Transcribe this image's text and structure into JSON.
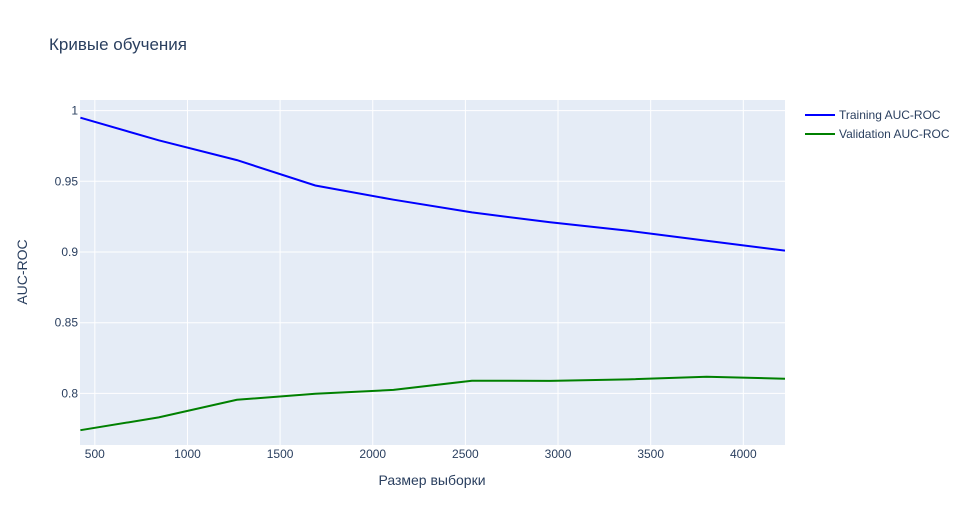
{
  "chart_data": {
    "type": "line",
    "title": "Кривые обучения",
    "xlabel": "Размер выборки",
    "ylabel": "AUC-ROC",
    "xlim": [
      420,
      4225
    ],
    "ylim": [
      0.7635,
      1.0075
    ],
    "x_ticks": [
      500,
      1000,
      1500,
      2000,
      2500,
      3000,
      3500,
      4000
    ],
    "x_tick_labels": [
      "500",
      "1000",
      "1500",
      "2000",
      "2500",
      "3000",
      "3500",
      "4000"
    ],
    "y_ticks": [
      0.8,
      0.85,
      0.9,
      0.95,
      1
    ],
    "y_tick_labels": [
      "0.8",
      "0.85",
      "0.9",
      "0.95",
      "1"
    ],
    "grid": true,
    "legend_position": "top-right, outside plot",
    "series": [
      {
        "name": "Training AUC-ROC",
        "color": "#0000ff",
        "x": [
          422,
          845,
          1267,
          1690,
          2112,
          2535,
          2957,
          3380,
          3802,
          4225
        ],
        "y": [
          0.995,
          0.979,
          0.965,
          0.947,
          0.937,
          0.928,
          0.921,
          0.915,
          0.908,
          0.901
        ]
      },
      {
        "name": "Validation AUC-ROC",
        "color": "#008000",
        "x": [
          422,
          845,
          1267,
          1690,
          2112,
          2535,
          2957,
          3380,
          3802,
          4225
        ],
        "y": [
          0.774,
          0.783,
          0.7955,
          0.7998,
          0.8025,
          0.809,
          0.8088,
          0.8099,
          0.8117,
          0.8104
        ]
      }
    ]
  }
}
